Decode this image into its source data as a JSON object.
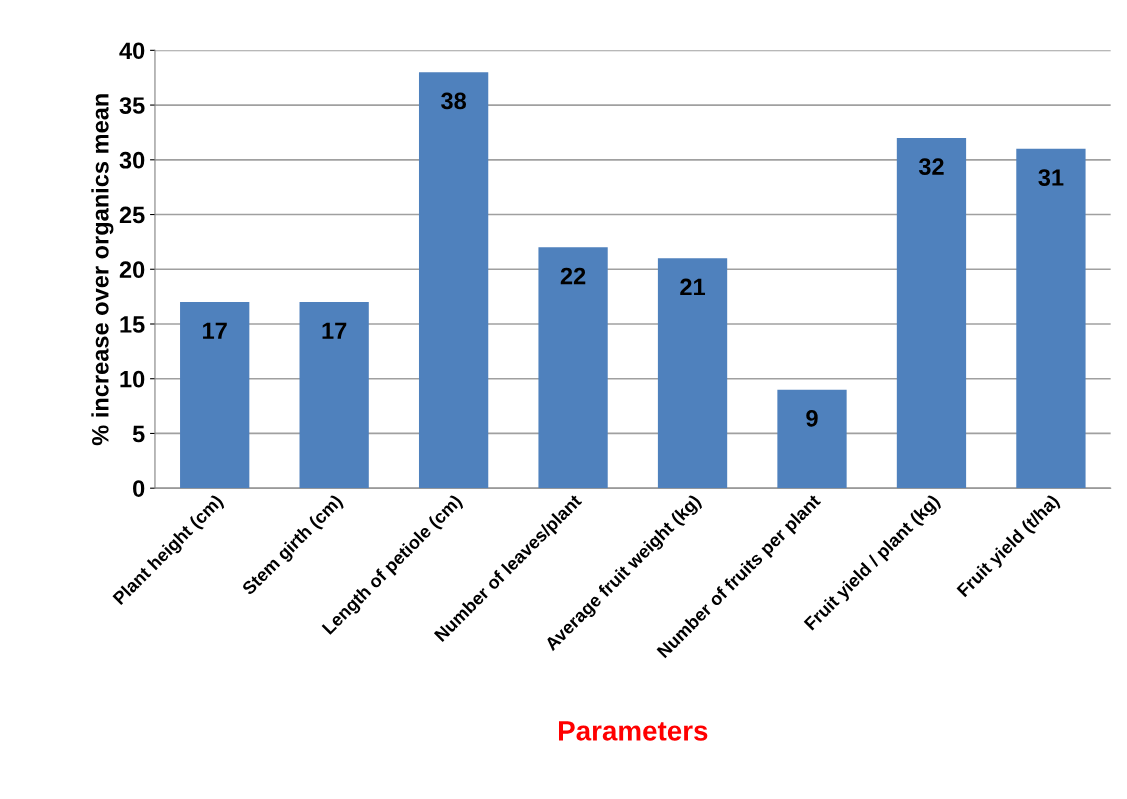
{
  "chart_data": {
    "type": "bar",
    "categories": [
      "Plant height (cm)",
      "Stem girth (cm)",
      "Length of petiole (cm)",
      "Number of leaves/plant",
      "Average fruit weight (kg)",
      "Number of fruits per plant",
      "Fruit yield / plant (kg)",
      "Fruit yield (t/ha)"
    ],
    "values": [
      17,
      17,
      38,
      22,
      21,
      9,
      32,
      31
    ],
    "color": "#4f81bd",
    "xlabel": "Parameters",
    "ylabel": "% increase over organics mean",
    "ylim": [
      0,
      40
    ],
    "yticks": [
      0,
      5,
      10,
      15,
      20,
      25,
      30,
      35,
      40
    ],
    "grid": "y",
    "data_labels": true
  }
}
